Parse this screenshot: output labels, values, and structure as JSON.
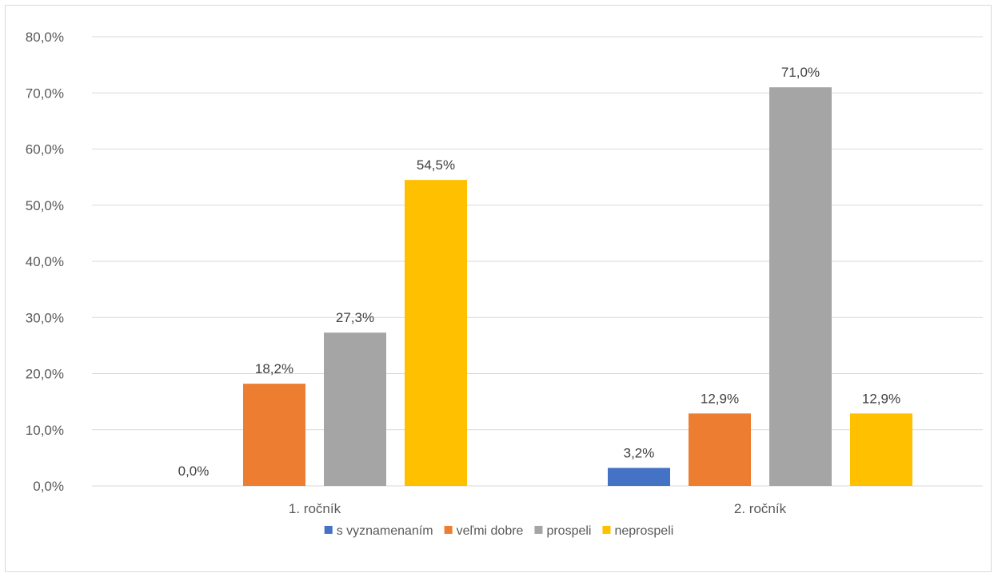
{
  "chart_data": {
    "type": "bar",
    "title": "",
    "xlabel": "",
    "ylabel": "",
    "categories": [
      "1. ročník",
      "2. ročník"
    ],
    "ylim": [
      0,
      80
    ],
    "yticks": [
      0,
      10,
      20,
      30,
      40,
      50,
      60,
      70,
      80
    ],
    "ytick_labels": [
      "0,0%",
      "10,0%",
      "20,0%",
      "30,0%",
      "40,0%",
      "50,0%",
      "60,0%",
      "70,0%",
      "80,0%"
    ],
    "grid": true,
    "legend_position": "bottom",
    "series": [
      {
        "name": "s vyznamenaním",
        "color": "#4472C4",
        "values": [
          0.0,
          3.2
        ],
        "labels": [
          "0,0%",
          "3,2%"
        ]
      },
      {
        "name": "veľmi dobre",
        "color": "#ED7D31",
        "values": [
          18.2,
          12.9
        ],
        "labels": [
          "18,2%",
          "12,9%"
        ]
      },
      {
        "name": "prospeli",
        "color": "#A5A5A5",
        "values": [
          27.3,
          71.0
        ],
        "labels": [
          "27,3%",
          "71,0%"
        ]
      },
      {
        "name": "neprospeli",
        "color": "#FFC000",
        "values": [
          54.5,
          12.9
        ],
        "labels": [
          "54,5%",
          "12,9%"
        ]
      }
    ]
  }
}
